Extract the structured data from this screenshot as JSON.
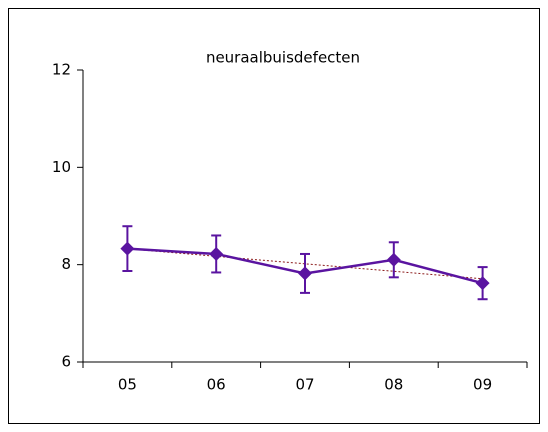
{
  "chart_data": {
    "type": "line",
    "title": "neuraalbuisdefecten",
    "categories": [
      "05",
      "06",
      "07",
      "08",
      "09"
    ],
    "series": [
      {
        "values": [
          8.33,
          8.22,
          7.82,
          8.1,
          7.62
        ],
        "errors": [
          0.46,
          0.38,
          0.4,
          0.36,
          0.33
        ],
        "color": "#5a14a0"
      }
    ],
    "trendline": true,
    "trend_color": "#8b1a1a",
    "ylim": [
      6,
      12
    ],
    "yticks": [
      6,
      8,
      10,
      12
    ],
    "grid": false
  }
}
